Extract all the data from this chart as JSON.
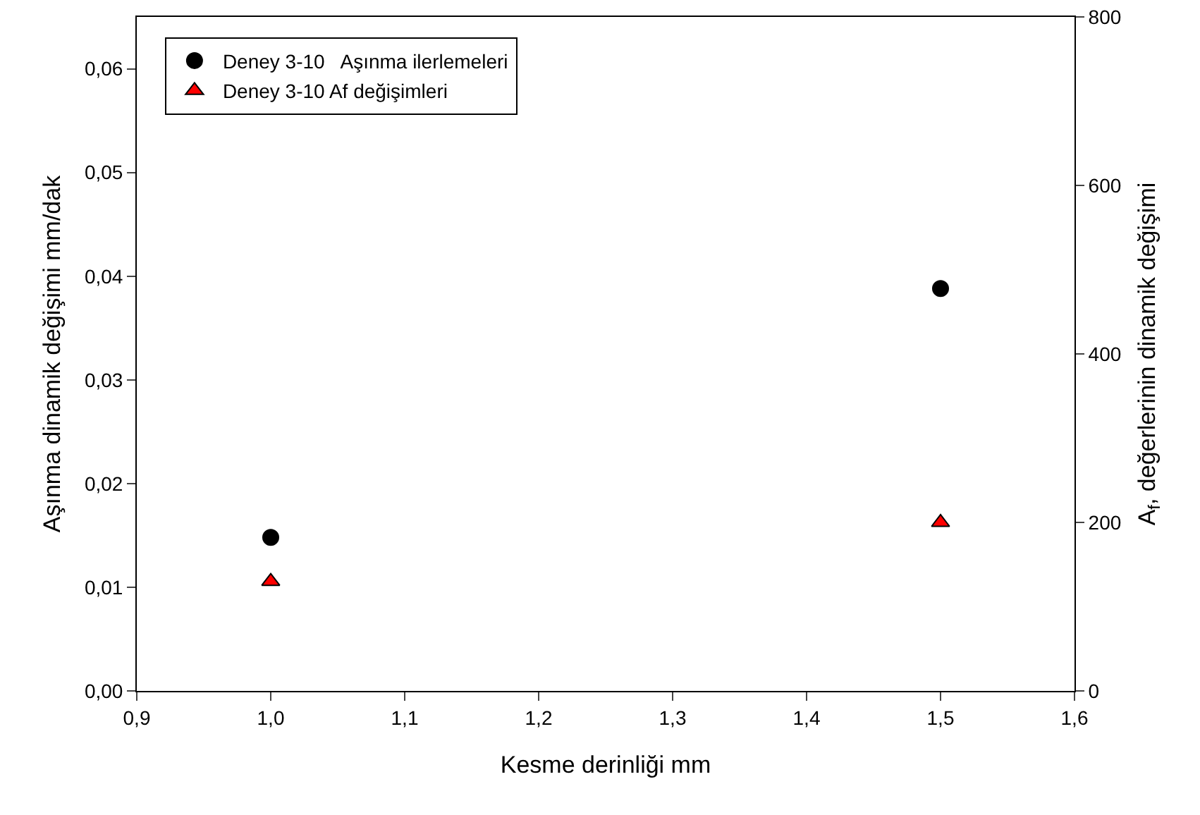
{
  "chart_data": {
    "type": "scatter",
    "xlabel": "Kesme derinliği mm",
    "ylabel": "Aşınma dinamik değişimi mm/dak",
    "y2label": "A$_{f}$, değerlerinin dinamik değişimi",
    "x": [
      1.0,
      1.5
    ],
    "series": [
      {
        "name": "Deney 3-10   Aşınma ilerlemeleri",
        "color": "#000000",
        "marker": "circle",
        "values": [
          0.0148,
          0.0388
        ]
      },
      {
        "name": "Deney 3-10 Af değişimleri",
        "color": "#ff0000",
        "marker": "triangle",
        "axis": "y2",
        "values": [
          130,
          200
        ]
      }
    ],
    "xlim": [
      0.9,
      1.6
    ],
    "xticks": [
      {
        "value": 0.9,
        "label": "0,9"
      },
      {
        "value": 1.0,
        "label": "1,0"
      },
      {
        "value": 1.1,
        "label": "1,1"
      },
      {
        "value": 1.2,
        "label": "1,2"
      },
      {
        "value": 1.3,
        "label": "1,3"
      },
      {
        "value": 1.4,
        "label": "1,4"
      },
      {
        "value": 1.5,
        "label": "1,5"
      },
      {
        "value": 1.6,
        "label": "1,6"
      }
    ],
    "ylim": [
      0,
      0.065
    ],
    "yticks": [
      {
        "value": 0,
        "label": "0,00"
      },
      {
        "value": 0.01,
        "label": "0,01"
      },
      {
        "value": 0.02,
        "label": "0,02"
      },
      {
        "value": 0.03,
        "label": "0,03"
      },
      {
        "value": 0.04,
        "label": "0,04"
      },
      {
        "value": 0.05,
        "label": "0,05"
      },
      {
        "value": 0.06,
        "label": "0,06"
      }
    ],
    "y2lim": [
      0,
      800
    ],
    "y2ticks": [
      0,
      200,
      400,
      600,
      800
    ],
    "legend": "top left",
    "grid": false
  }
}
